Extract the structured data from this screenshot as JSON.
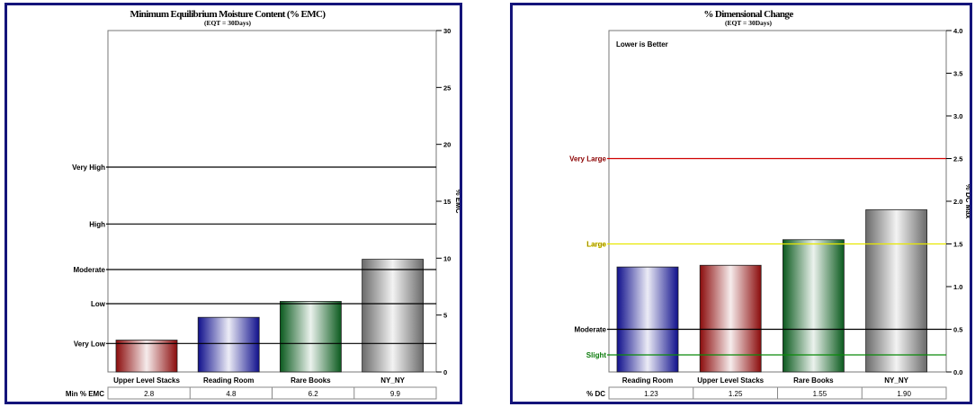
{
  "chart_data": [
    {
      "type": "bar",
      "title": "Minimum Equilibrium Moisture Content (% EMC)",
      "subtitle": "(EQT = 30Days)",
      "xlabel": "",
      "ylabel": "% EMC",
      "ylim": [
        0,
        30
      ],
      "yticks": [
        0,
        5,
        10,
        15,
        20,
        25,
        30
      ],
      "ytick_labels": [
        "0",
        "5",
        "10",
        "15",
        "20",
        "25",
        "30"
      ],
      "axis_side": "right",
      "grid": false,
      "categories": [
        "Upper Level Stacks",
        "Reading Room",
        "Rare Books",
        "NY_NY"
      ],
      "values": [
        2.8,
        4.8,
        6.2,
        9.9
      ],
      "bar_colors": [
        "#8b0c0c",
        "#10108c",
        "#0b5a1e",
        "#6a6a6a"
      ],
      "reference_lines": [
        {
          "label": "Very Low",
          "value": 2.5,
          "color": "#000000"
        },
        {
          "label": "Low",
          "value": 6.0,
          "color": "#000000"
        },
        {
          "label": "Moderate",
          "value": 9.0,
          "color": "#000000"
        },
        {
          "label": "High",
          "value": 13.0,
          "color": "#000000"
        },
        {
          "label": "Very High",
          "value": 18.0,
          "color": "#000000"
        }
      ],
      "table": {
        "row_label": "Min %  EMC",
        "cells": [
          "2.8",
          "4.8",
          "6.2",
          "9.9"
        ]
      }
    },
    {
      "type": "bar",
      "title": "% Dimensional Change",
      "subtitle": "(EQT = 30Days)",
      "xlabel": "",
      "ylabel": "% DC Max",
      "ylim": [
        0,
        4
      ],
      "yticks": [
        0,
        0.5,
        1,
        1.5,
        2,
        2.5,
        3,
        3.5,
        4
      ],
      "ytick_labels": [
        "0.0",
        "0.5",
        "1.0",
        "1.5",
        "2.0",
        "2.5",
        "3.0",
        "3.5",
        "4.0"
      ],
      "axis_side": "right",
      "grid": false,
      "annotation": "Lower is Better",
      "categories": [
        "Reading Room",
        "Upper Level Stacks",
        "Rare Books",
        "NY_NY"
      ],
      "values": [
        1.23,
        1.25,
        1.55,
        1.9
      ],
      "bar_colors": [
        "#10108c",
        "#8b0c0c",
        "#0b5a1e",
        "#6a6a6a"
      ],
      "reference_lines": [
        {
          "label": "Slight",
          "value": 0.2,
          "color": "#0a8a0a"
        },
        {
          "label": "Moderate",
          "value": 0.5,
          "color": "#000000"
        },
        {
          "label": "Large",
          "value": 1.5,
          "color": "#e8e800"
        },
        {
          "label": "Very Large",
          "value": 2.5,
          "color": "#d00000"
        }
      ],
      "table": {
        "row_label": "%  DC",
        "cells": [
          "1.23",
          "1.25",
          "1.55",
          "1.90"
        ]
      }
    }
  ]
}
